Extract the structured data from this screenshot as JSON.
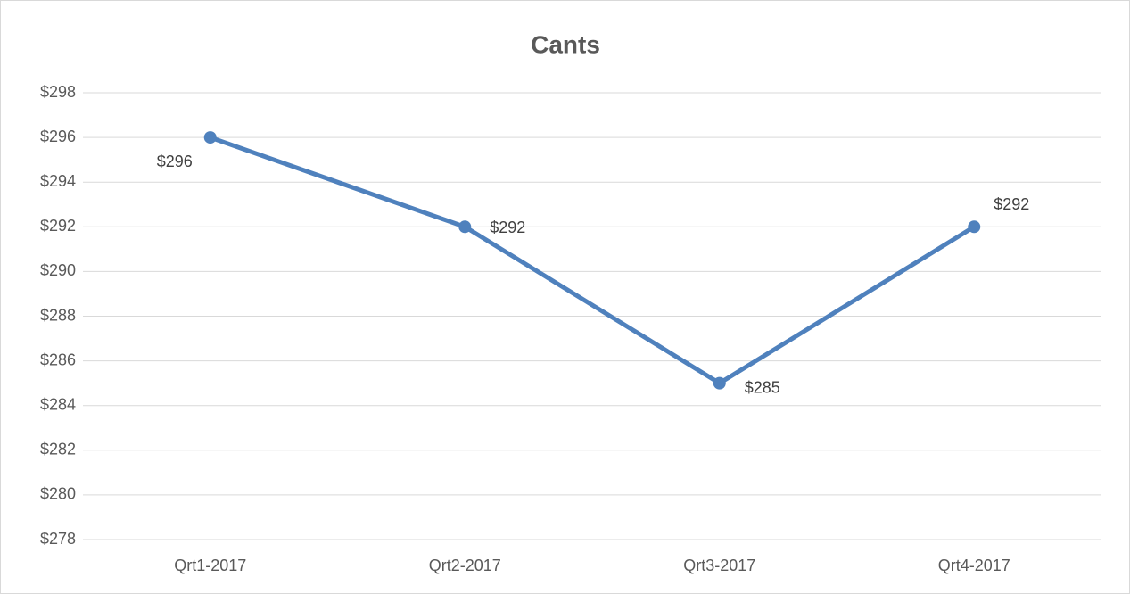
{
  "chart_data": {
    "type": "line",
    "title": "Cants",
    "categories": [
      "Qrt1-2017",
      "Qrt2-2017",
      "Qrt3-2017",
      "Qrt4-2017"
    ],
    "series": [
      {
        "name": "Cants",
        "color": "#4f81bd",
        "values": [
          296,
          292,
          285,
          292
        ],
        "value_labels": [
          "$296",
          "$292",
          "$285",
          "$292"
        ]
      }
    ],
    "ylim": [
      278,
      298
    ],
    "yticks": [
      {
        "value": 278,
        "label": "$278"
      },
      {
        "value": 280,
        "label": "$280"
      },
      {
        "value": 282,
        "label": "$282"
      },
      {
        "value": 284,
        "label": "$284"
      },
      {
        "value": 286,
        "label": "$286"
      },
      {
        "value": 288,
        "label": "$288"
      },
      {
        "value": 290,
        "label": "$290"
      },
      {
        "value": 292,
        "label": "$292"
      },
      {
        "value": 294,
        "label": "$294"
      },
      {
        "value": 296,
        "label": "$296"
      },
      {
        "value": 298,
        "label": "$298"
      }
    ],
    "grid": true
  }
}
